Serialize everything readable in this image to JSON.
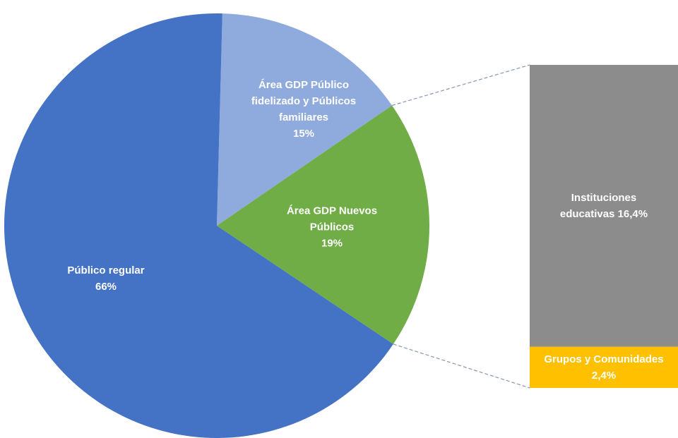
{
  "chart_data": {
    "type": "pie-of-bar",
    "pie": {
      "categories": [
        "Área GDP Público fidelizado y Públicos familiares",
        "Área GDP Nuevos Públicos",
        "Público regular"
      ],
      "values": [
        15,
        19,
        66
      ],
      "value_labels": [
        "15%",
        "19%",
        "66%"
      ],
      "colors": [
        "#8faadc",
        "#70ad47",
        "#4472c4"
      ]
    },
    "bar": {
      "categories": [
        "Instituciones educativas",
        "Grupos y Comunidades"
      ],
      "values": [
        16.4,
        2.4
      ],
      "value_labels": [
        "16,4%",
        "2,4%"
      ],
      "colors": [
        "#8c8c8c",
        "#ffc000"
      ]
    }
  }
}
